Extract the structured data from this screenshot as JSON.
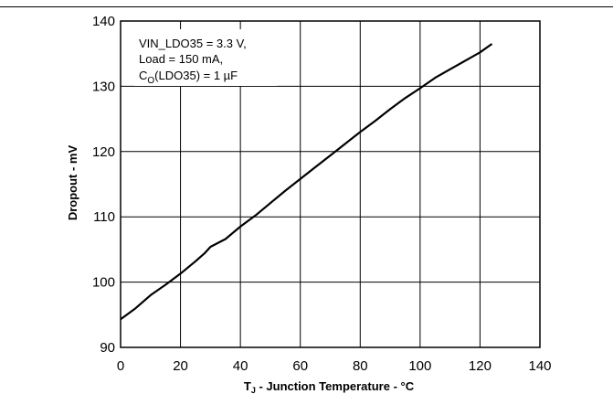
{
  "chart_data": {
    "type": "line",
    "title": "",
    "xlabel": {
      "main": "T",
      "sub": "J",
      "rest": " - Junction Temperature - °C"
    },
    "ylabel": "Dropout - mV",
    "xlim": [
      0,
      140
    ],
    "ylim": [
      90,
      140
    ],
    "xticks": [
      "0",
      "20",
      "40",
      "60",
      "80",
      "100",
      "120",
      "140"
    ],
    "yticks": [
      "90",
      "100",
      "110",
      "120",
      "130",
      "140"
    ],
    "grid": true,
    "annotation": {
      "line1": "VIN_LDO35 = 3.3 V,",
      "line2": "Load = 150 mA,",
      "line3_main": "C",
      "line3_sub": "O",
      "line3_rest": "(LDO35) = 1 µF"
    },
    "series": [
      {
        "x": [
          0,
          5,
          10,
          15,
          20,
          25,
          28,
          30,
          35,
          40,
          45,
          50,
          55,
          60,
          65,
          70,
          75,
          80,
          85,
          90,
          95,
          100,
          105,
          110,
          115,
          120,
          124
        ],
        "y": [
          94.3,
          96.0,
          98.0,
          99.6,
          101.3,
          103.2,
          104.4,
          105.4,
          106.6,
          108.5,
          110.2,
          112.1,
          114.0,
          115.8,
          117.6,
          119.4,
          121.2,
          123.0,
          124.7,
          126.5,
          128.2,
          129.7,
          131.3,
          132.6,
          133.9,
          135.2,
          136.5
        ]
      }
    ]
  }
}
